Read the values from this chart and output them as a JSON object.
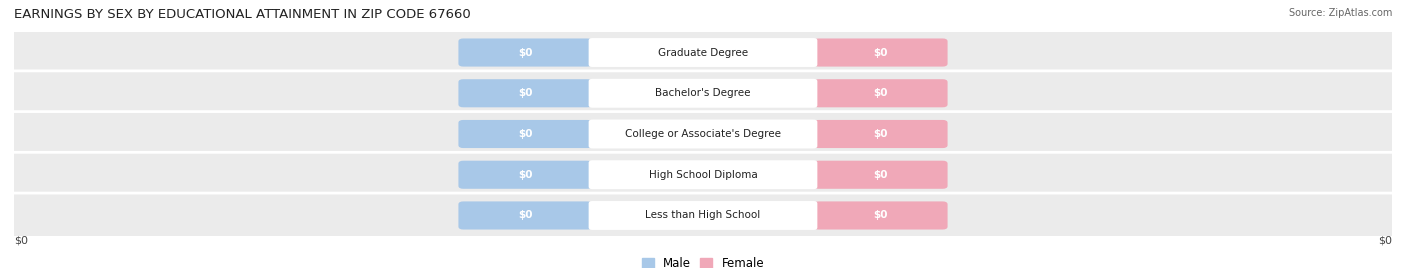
{
  "title": "EARNINGS BY SEX BY EDUCATIONAL ATTAINMENT IN ZIP CODE 67660",
  "source": "Source: ZipAtlas.com",
  "categories": [
    "Less than High School",
    "High School Diploma",
    "College or Associate's Degree",
    "Bachelor's Degree",
    "Graduate Degree"
  ],
  "male_values": [
    0,
    0,
    0,
    0,
    0
  ],
  "female_values": [
    0,
    0,
    0,
    0,
    0
  ],
  "male_color": "#a8c8e8",
  "female_color": "#f0a8b8",
  "row_bg_color": "#ececec",
  "row_bg_color_alt": "#f5f5f5",
  "xlabel_left": "$0",
  "xlabel_right": "$0",
  "legend_male": "Male",
  "legend_female": "Female",
  "title_fontsize": 9.5,
  "value_label_color": "white",
  "category_label_color": "#222222",
  "background_color": "#ffffff"
}
